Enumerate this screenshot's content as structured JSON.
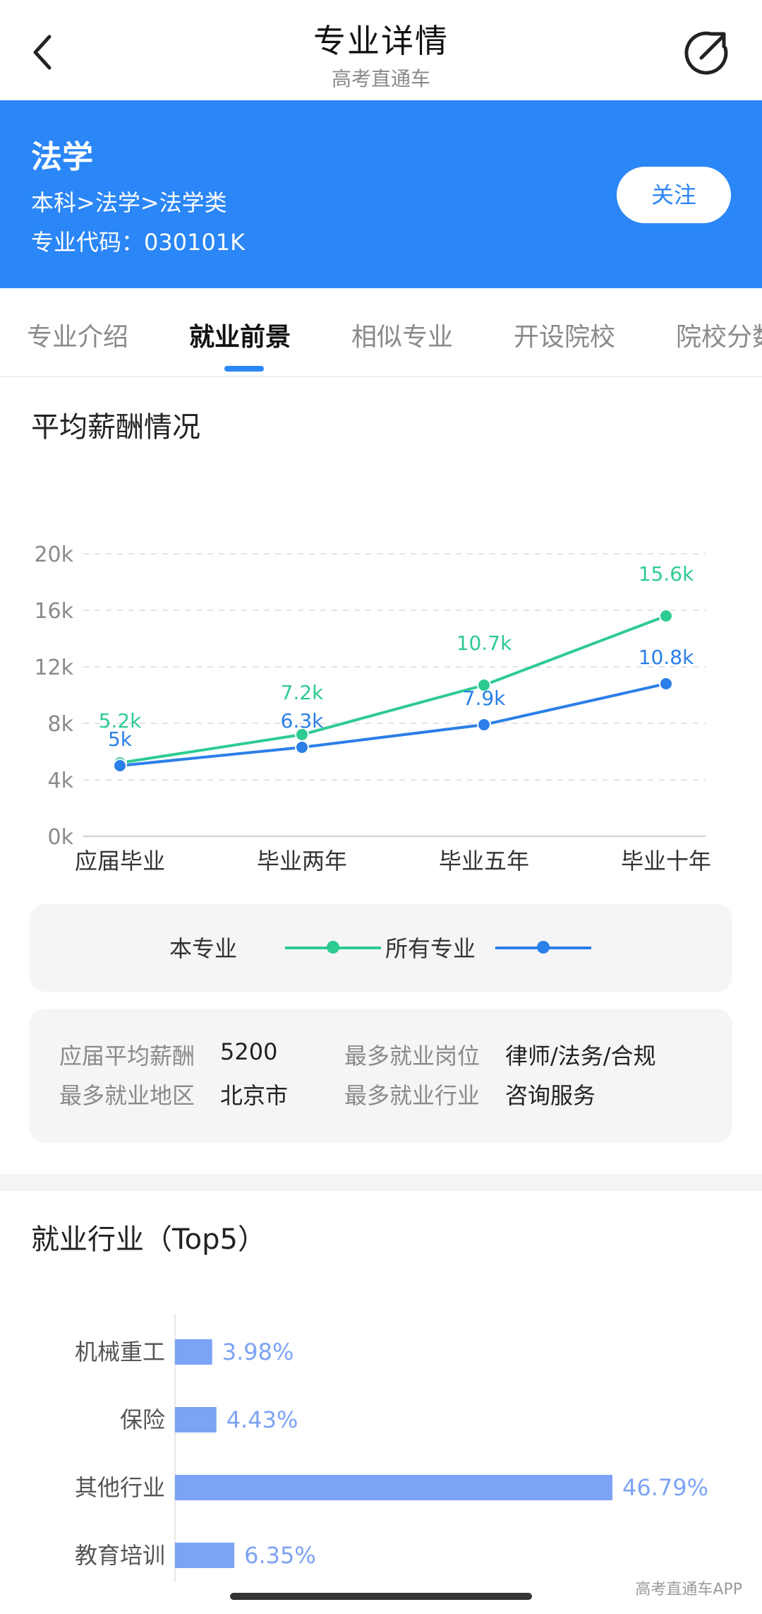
{
  "nav": {
    "title": "专业详情",
    "subtitle": "高考直通车",
    "back_icon": "chevron-left-icon",
    "share_icon": "share-arrow-icon"
  },
  "header": {
    "name": "法学",
    "path": "本科>法学>法学类",
    "code": "专业代码：030101K",
    "follow_label": "关注",
    "bg_color": "#2b86f7"
  },
  "tabs": [
    {
      "label": "专业介绍",
      "active": false
    },
    {
      "label": "就业前景",
      "active": true
    },
    {
      "label": "相似专业",
      "active": false
    },
    {
      "label": "开设院校",
      "active": false
    },
    {
      "label": "院校分数",
      "active": false
    }
  ],
  "salary": {
    "title": "平均薪酬情况",
    "legend": {
      "this_major": "本专业",
      "all_majors": "所有专业"
    },
    "colors": {
      "this_major": "#2ecb91",
      "all_majors": "#2b7fe8"
    },
    "stats": {
      "fresh_avg_label": "应届平均薪酬",
      "fresh_avg_value": "5200",
      "top_job_label": "最多就业岗位",
      "top_job_value": "律师/法务/合规",
      "top_region_label": "最多就业地区",
      "top_region_value": "北京市",
      "top_industry_label": "最多就业行业",
      "top_industry_value": "咨询服务"
    }
  },
  "industry": {
    "title": "就业行业（Top5）",
    "bar_color": "#7ca3f5"
  },
  "footer": {
    "watermark": "高考直通车APP"
  },
  "chart_data": [
    {
      "type": "line",
      "categories": [
        "应届毕业",
        "毕业两年",
        "毕业五年",
        "毕业十年"
      ],
      "series": [
        {
          "name": "本专业",
          "values": [
            5.2,
            7.2,
            10.7,
            15.6
          ],
          "labels": [
            "5.2k",
            "7.2k",
            "10.7k",
            "15.6k"
          ]
        },
        {
          "name": "所有专业",
          "values": [
            5,
            6.3,
            7.9,
            10.8
          ],
          "labels": [
            "5k",
            "6.3k",
            "7.9k",
            "10.8k"
          ]
        }
      ],
      "ylim": [
        0,
        20
      ],
      "yticks": [
        "0k",
        "4k",
        "8k",
        "12k",
        "16k",
        "20k"
      ],
      "grid": true,
      "title": "",
      "xlabel": "",
      "ylabel": ""
    },
    {
      "type": "bar",
      "orientation": "horizontal",
      "categories": [
        "机械重工",
        "保险",
        "其他行业",
        "教育培训"
      ],
      "values": [
        3.98,
        4.43,
        46.79,
        6.35
      ],
      "labels": [
        "3.98%",
        "4.43%",
        "46.79%",
        "6.35%"
      ],
      "title": "",
      "xlabel": "",
      "ylabel": ""
    }
  ]
}
